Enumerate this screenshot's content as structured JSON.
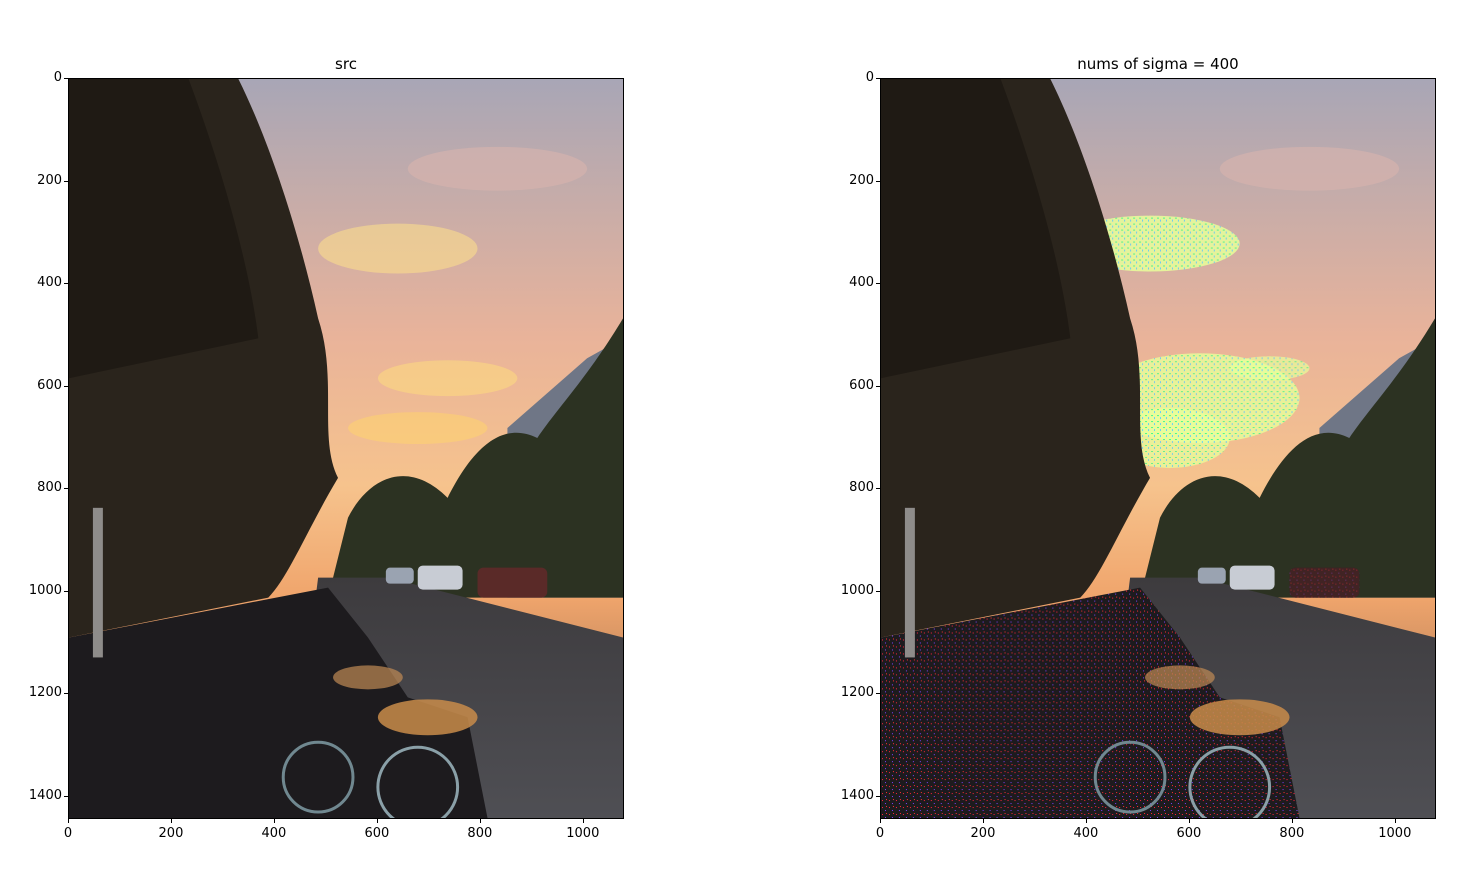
{
  "panels": [
    {
      "title": "src",
      "y_ticks": [
        "0",
        "200",
        "400",
        "600",
        "800",
        "1000",
        "1200",
        "1400"
      ],
      "x_ticks": [
        "0",
        "200",
        "400",
        "600",
        "800",
        "1000"
      ]
    },
    {
      "title": "nums of sigma = 400",
      "y_ticks": [
        "0",
        "200",
        "400",
        "600",
        "800",
        "1000",
        "1200",
        "1400"
      ],
      "x_ticks": [
        "0",
        "200",
        "400",
        "600",
        "800",
        "1000"
      ]
    }
  ],
  "image": {
    "description_colors": {
      "sky_top": "#a9a6b8",
      "sky_mid": "#f2b892",
      "sky_glow": "#ffd27a",
      "trees": "#2a241c",
      "road": "#4a4a4e",
      "highlight_marks": "#7dff9a"
    }
  }
}
